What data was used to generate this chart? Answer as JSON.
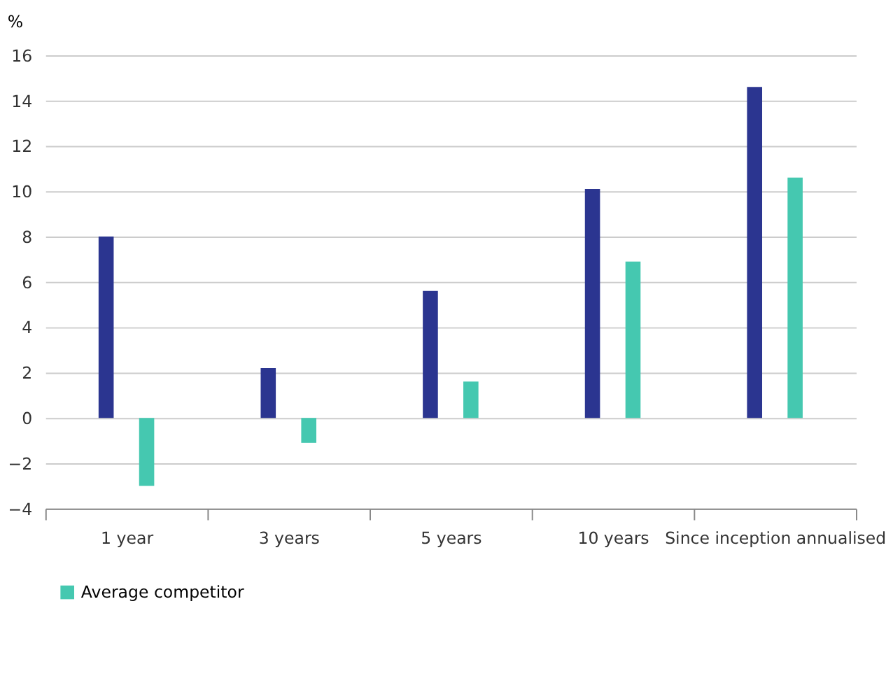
{
  "chart_data": {
    "type": "bar",
    "ylabel": "%",
    "categories": [
      "1 year",
      "3 years",
      "5 years",
      "10 years",
      "Since inception annualised"
    ],
    "series": [
      {
        "color": "#2b3590",
        "values": [
          8.0,
          2.2,
          5.6,
          10.1,
          14.6
        ]
      },
      {
        "name": "Average competitor",
        "color": "#45c8b0",
        "values": [
          -3.0,
          -1.1,
          1.6,
          6.9,
          10.6
        ]
      }
    ],
    "ylim": [
      -4,
      16
    ],
    "yticks": [
      -4,
      -2,
      0,
      2,
      4,
      6,
      8,
      10,
      12,
      14,
      16
    ],
    "grid": "y",
    "legend": "bottom"
  }
}
